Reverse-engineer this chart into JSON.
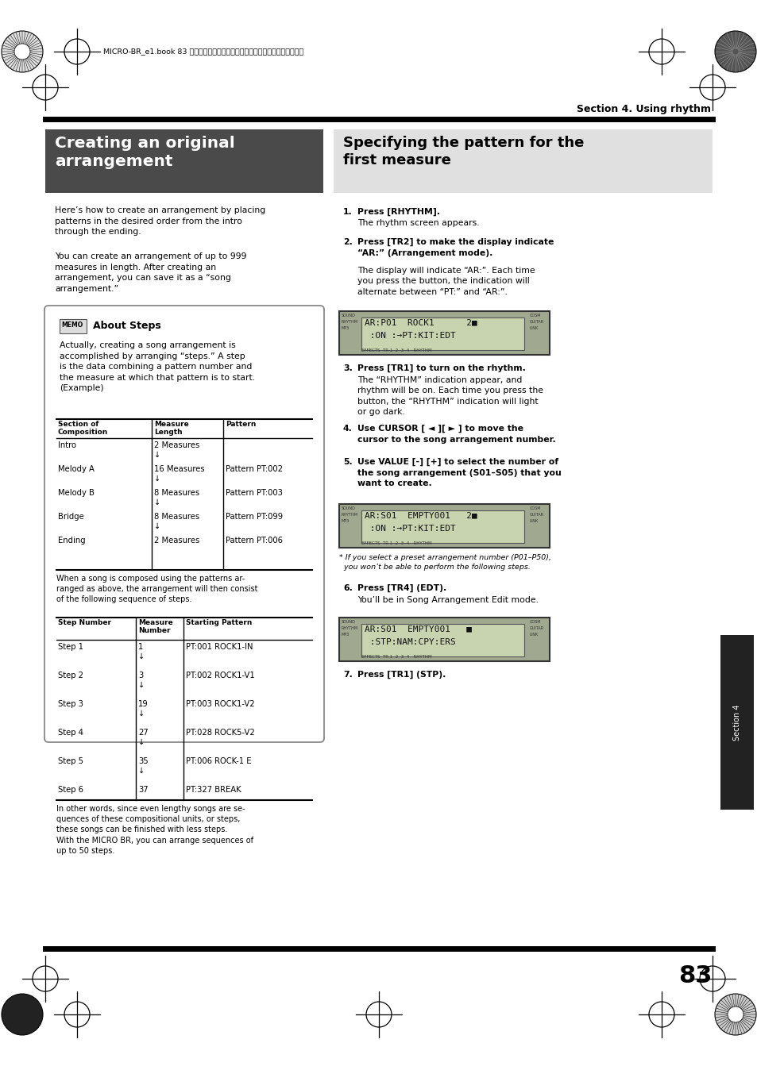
{
  "page_bg": "#ffffff",
  "section_label": "Section 4. Using rhythm",
  "header_text": "MICRO-BR_e1.book 83 ページ　２００６年８月１日　火曜日　午後１２時６分",
  "left_title": "Creating an original\narrangement",
  "left_title_bg": "#4a4a4a",
  "left_title_color": "#ffffff",
  "right_title": "Specifying the pattern for the\nfirst measure",
  "right_title_bg": "#e0e0e0",
  "right_title_color": "#000000",
  "page_number": "83",
  "section4_label": "Section 4"
}
